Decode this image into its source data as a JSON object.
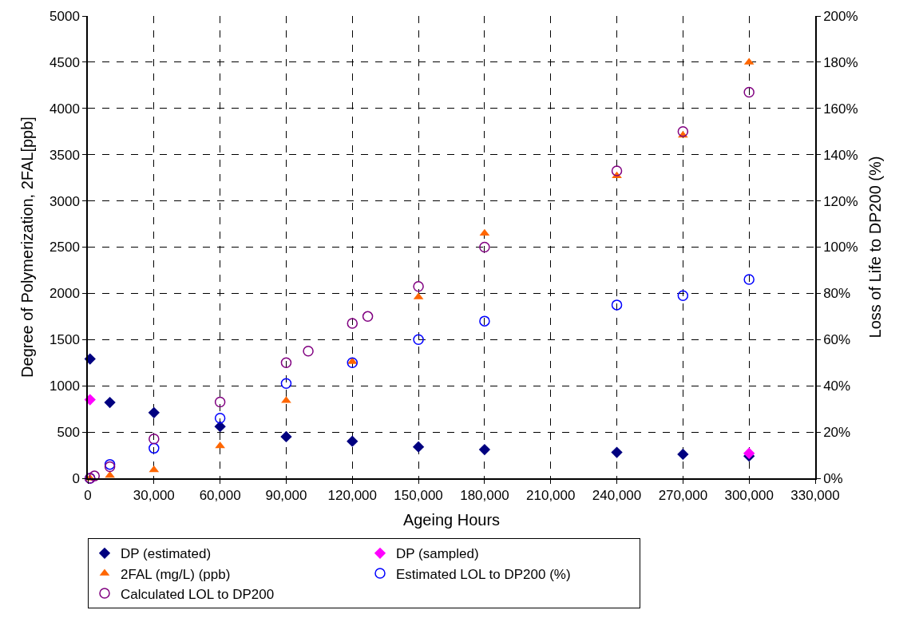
{
  "chart_data": {
    "type": "scatter",
    "xlabel": "Ageing Hours",
    "ylabel": "Degree of Polymerization, 2FAL[ppb]",
    "y2label": "Loss of Life to DP200 (%)",
    "xlim": [
      0,
      330000
    ],
    "xticks": [
      {
        "value": 0,
        "label": "0"
      },
      {
        "value": 30000,
        "label": "30,000"
      },
      {
        "value": 60000,
        "label": "60,000"
      },
      {
        "value": 90000,
        "label": "90,000"
      },
      {
        "value": 120000,
        "label": "120,000"
      },
      {
        "value": 150000,
        "label": "150,000"
      },
      {
        "value": 180000,
        "label": "180,000"
      },
      {
        "value": 210000,
        "label": "210,000"
      },
      {
        "value": 240000,
        "label": "240,000"
      },
      {
        "value": 270000,
        "label": "270,000"
      },
      {
        "value": 300000,
        "label": "300,000"
      },
      {
        "value": 330000,
        "label": "330,000"
      }
    ],
    "ylim": [
      0,
      5000
    ],
    "yticks": [
      0,
      500,
      1000,
      1500,
      2000,
      2500,
      3000,
      3500,
      4000,
      4500,
      5000
    ],
    "y2lim": [
      0,
      200
    ],
    "y2ticks": [
      {
        "value": 0,
        "label": "0%"
      },
      {
        "value": 20,
        "label": "20%"
      },
      {
        "value": 40,
        "label": "40%"
      },
      {
        "value": 60,
        "label": "60%"
      },
      {
        "value": 80,
        "label": "80%"
      },
      {
        "value": 100,
        "label": "100%"
      },
      {
        "value": 120,
        "label": "120%"
      },
      {
        "value": 140,
        "label": "140%"
      },
      {
        "value": 160,
        "label": "160%"
      },
      {
        "value": 180,
        "label": "180%"
      },
      {
        "value": 200,
        "label": "200%"
      }
    ],
    "grid": true,
    "legend": "bottom",
    "series": [
      {
        "name": "DP (estimated)",
        "color": "#000080",
        "marker": "diamond",
        "x": [
          1000,
          10000,
          30000,
          60000,
          90000,
          120000,
          150000,
          180000,
          240000,
          270000,
          300000
        ],
        "values": [
          1290,
          820,
          710,
          560,
          450,
          400,
          340,
          310,
          280,
          260,
          240
        ]
      },
      {
        "name": "DP (sampled)",
        "color": "#ff00ff",
        "marker": "diamond",
        "x": [
          1000,
          300000
        ],
        "values": [
          850,
          270
        ]
      },
      {
        "name": "2FAL (mg/L) (ppb)",
        "color": "#ff6600",
        "marker": "triangle",
        "x": [
          1000,
          10000,
          30000,
          60000,
          90000,
          120000,
          150000,
          180000,
          240000,
          270000,
          300000
        ],
        "values": [
          0,
          30,
          90,
          350,
          840,
          1260,
          1960,
          2650,
          3270,
          3710,
          4500
        ]
      },
      {
        "name": "Estimated LOL to DP200 (%)",
        "color": "#0000ff",
        "marker": "circle",
        "axis": "y2",
        "x": [
          1000,
          10000,
          30000,
          60000,
          90000,
          120000,
          150000,
          180000,
          240000,
          270000,
          300000
        ],
        "values": [
          0,
          6,
          13,
          26,
          41,
          50,
          60,
          68,
          75,
          79,
          86
        ]
      },
      {
        "name": "Calculated LOL to DP200",
        "color": "#800080",
        "marker": "circle",
        "axis": "y2",
        "x": [
          1000,
          3000,
          10000,
          30000,
          60000,
          90000,
          100000,
          120000,
          127000,
          150000,
          180000,
          240000,
          270000,
          300000
        ],
        "values": [
          0,
          1,
          5,
          17,
          33,
          50,
          55,
          67,
          70,
          83,
          100,
          133,
          150,
          167
        ]
      }
    ]
  }
}
